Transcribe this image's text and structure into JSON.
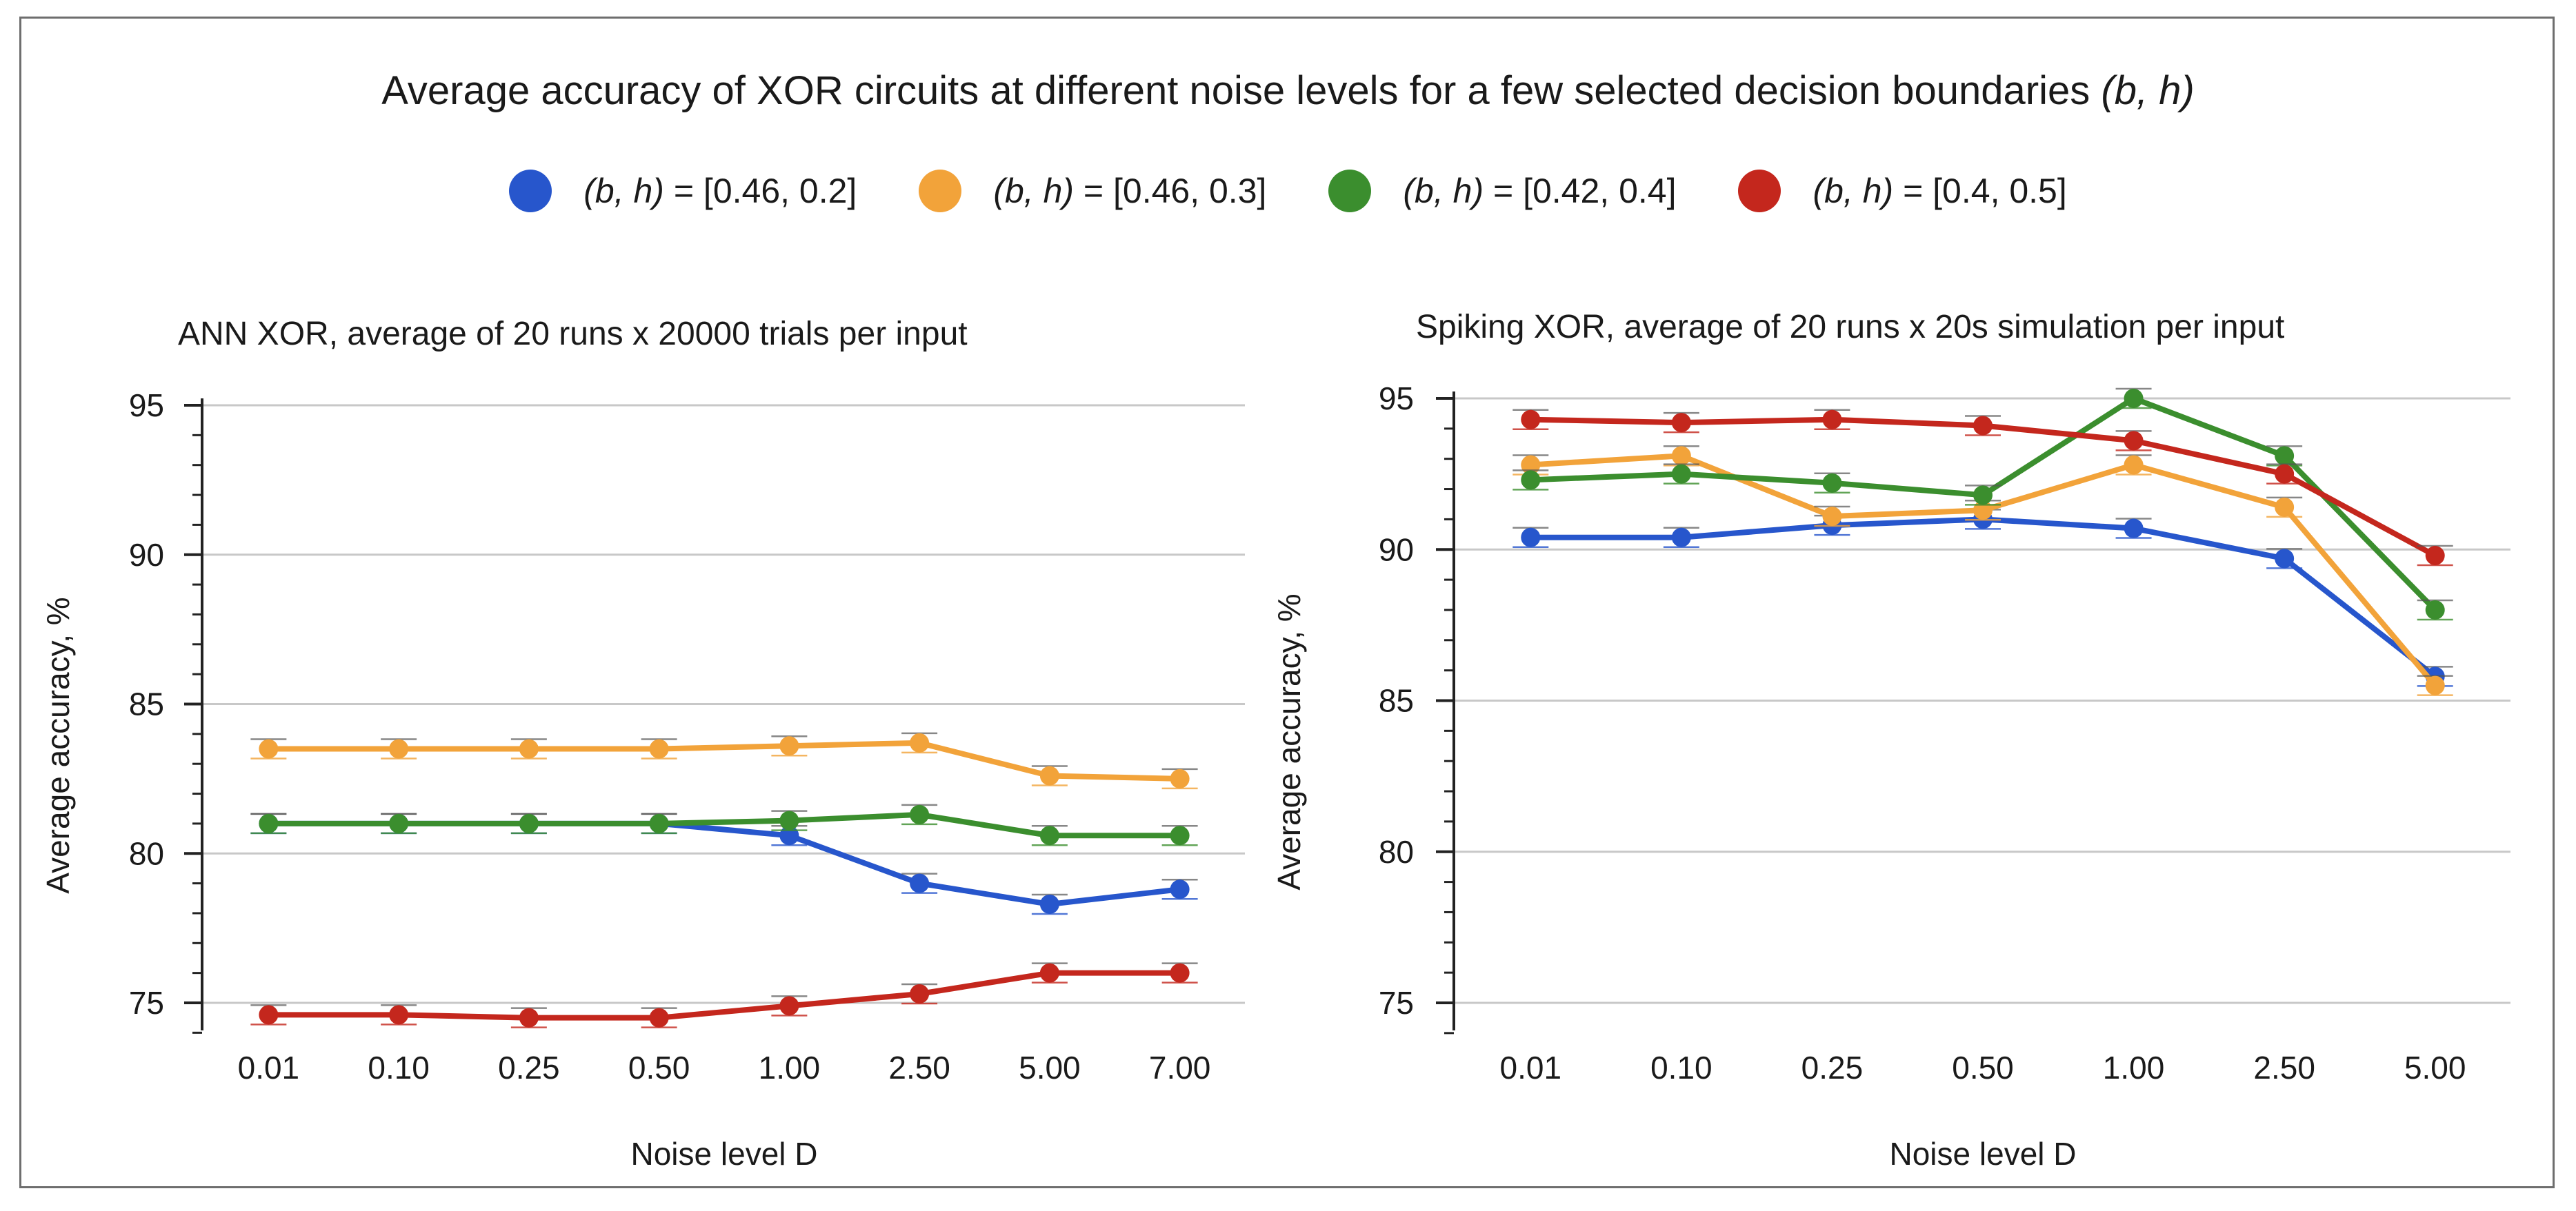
{
  "title": {
    "prefix": "Average accuracy of XOR circuits at different noise levels for a few selected decision boundaries ",
    "emphasis": "(b, h)"
  },
  "legend": [
    {
      "italic": "(b, h)",
      "text": " = [0.46, 0.2]",
      "color": "#2756cc"
    },
    {
      "italic": "(b, h)",
      "text": " = [0.46, 0.3]",
      "color": "#f2a33a"
    },
    {
      "italic": "(b, h)",
      "text": " = [0.42, 0.4]",
      "color": "#3b8e2e"
    },
    {
      "italic": "(b, h)",
      "text": " = [0.4, 0.5]",
      "color": "#c4271d"
    }
  ],
  "chart_data": [
    {
      "type": "line",
      "title": "ANN XOR, average of 20 runs x 20000 trials per input",
      "xlabel": "Noise level D",
      "ylabel": "Average accuracy, %",
      "categories": [
        "0.01",
        "0.10",
        "0.25",
        "0.50",
        "1.00",
        "2.50",
        "5.00",
        "7.00"
      ],
      "ylim": [
        74,
        95
      ],
      "yticks": [
        75,
        80,
        85,
        90,
        95
      ],
      "grid": true,
      "error_bars": true,
      "series": [
        {
          "name": "(b, h) = [0.46, 0.2]",
          "color": "#2756cc",
          "values": [
            81.0,
            81.0,
            81.0,
            81.0,
            80.6,
            79.0,
            78.3,
            78.8
          ]
        },
        {
          "name": "(b, h) = [0.46, 0.3]",
          "color": "#f2a33a",
          "values": [
            83.5,
            83.5,
            83.5,
            83.5,
            83.6,
            83.7,
            82.6,
            82.5
          ]
        },
        {
          "name": "(b, h) = [0.42, 0.4]",
          "color": "#3b8e2e",
          "values": [
            81.0,
            81.0,
            81.0,
            81.0,
            81.1,
            81.3,
            80.6,
            80.6
          ]
        },
        {
          "name": "(b, h) = [0.4, 0.5]",
          "color": "#c4271d",
          "values": [
            74.6,
            74.6,
            74.5,
            74.5,
            74.9,
            75.3,
            76.0,
            76.0
          ]
        }
      ]
    },
    {
      "type": "line",
      "title": "Spiking XOR, average of 20 runs x 20s simulation per input",
      "xlabel": "Noise level D",
      "ylabel": "Average accuracy, %",
      "categories": [
        "0.01",
        "0.10",
        "0.25",
        "0.50",
        "1.00",
        "2.50",
        "5.00"
      ],
      "ylim": [
        74,
        95
      ],
      "yticks": [
        75,
        80,
        85,
        90,
        95
      ],
      "grid": true,
      "error_bars": true,
      "series": [
        {
          "name": "(b, h) = [0.46, 0.2]",
          "color": "#2756cc",
          "values": [
            90.4,
            90.4,
            90.8,
            91.0,
            90.7,
            89.7,
            85.8
          ]
        },
        {
          "name": "(b, h) = [0.46, 0.3]",
          "color": "#f2a33a",
          "values": [
            92.8,
            93.1,
            91.1,
            91.3,
            92.8,
            91.4,
            85.5
          ]
        },
        {
          "name": "(b, h) = [0.42, 0.4]",
          "color": "#3b8e2e",
          "values": [
            92.3,
            92.5,
            92.2,
            91.8,
            95.0,
            93.1,
            88.0
          ]
        },
        {
          "name": "(b, h) = [0.4, 0.5]",
          "color": "#c4271d",
          "values": [
            94.3,
            94.2,
            94.3,
            94.1,
            93.6,
            92.5,
            89.8
          ]
        }
      ]
    }
  ]
}
